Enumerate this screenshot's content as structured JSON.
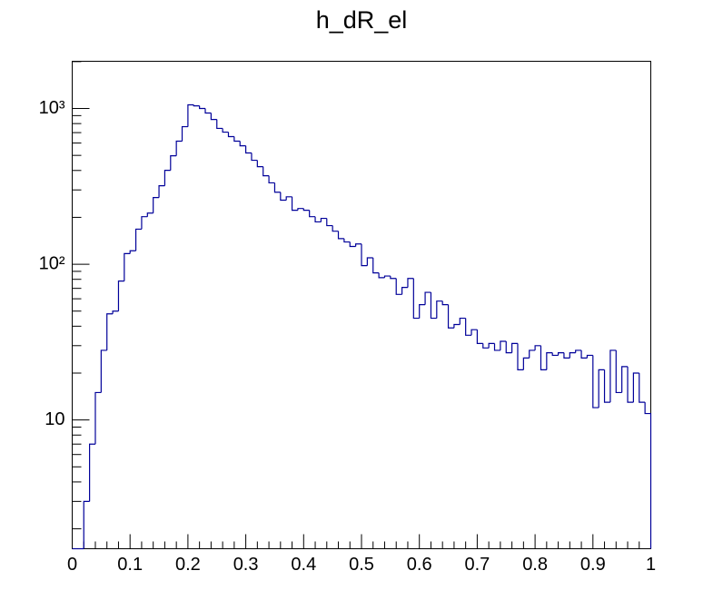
{
  "chart_data": {
    "type": "histogram",
    "title": "h_dR_el",
    "bins": [
      0,
      0.01,
      0.02,
      0.03,
      0.04,
      0.05,
      0.06,
      0.07,
      0.08,
      0.09,
      0.1,
      0.11,
      0.12,
      0.13,
      0.14,
      0.15,
      0.16,
      0.17,
      0.18,
      0.19,
      0.2,
      0.21,
      0.22,
      0.23,
      0.24,
      0.25,
      0.26,
      0.27,
      0.28,
      0.29,
      0.3,
      0.31,
      0.32,
      0.33,
      0.34,
      0.35,
      0.36,
      0.37,
      0.38,
      0.39,
      0.4,
      0.41,
      0.42,
      0.43,
      0.44,
      0.45,
      0.46,
      0.47,
      0.48,
      0.49,
      0.5,
      0.51,
      0.52,
      0.53,
      0.54,
      0.55,
      0.56,
      0.57,
      0.58,
      0.59,
      0.6,
      0.61,
      0.62,
      0.63,
      0.64,
      0.65,
      0.66,
      0.67,
      0.68,
      0.69,
      0.7,
      0.71,
      0.72,
      0.73,
      0.74,
      0.75,
      0.76,
      0.77,
      0.78,
      0.79,
      0.8,
      0.81,
      0.82,
      0.83,
      0.84,
      0.85,
      0.86,
      0.87,
      0.88,
      0.89,
      0.9,
      0.91,
      0.92,
      0.93,
      0.94,
      0.95,
      0.96,
      0.97,
      0.98,
      0.99,
      1
    ],
    "values": [
      0,
      0,
      3,
      7,
      15,
      28,
      48,
      50,
      78,
      117,
      122,
      168,
      202,
      213,
      268,
      319,
      401,
      497,
      617,
      764,
      1055,
      1040,
      1000,
      935,
      850,
      745,
      705,
      660,
      617,
      576,
      518,
      465,
      423,
      370,
      333,
      290,
      258,
      271,
      222,
      228,
      222,
      202,
      187,
      197,
      177,
      163,
      146,
      139,
      130,
      135,
      98,
      110,
      88,
      82,
      84,
      81,
      64,
      71,
      81,
      45,
      55,
      66,
      45,
      58,
      55,
      39,
      41,
      45,
      35,
      38,
      31,
      29,
      31,
      28,
      32,
      27,
      31,
      21,
      25,
      28,
      30,
      21,
      27,
      26,
      27,
      25,
      27,
      28,
      25,
      26,
      12,
      21,
      13,
      28,
      15,
      22,
      13,
      20,
      13,
      11
    ],
    "color": "#000099",
    "log_y": true,
    "xlim": [
      0,
      1
    ],
    "xticks": [
      0,
      0.1,
      0.2,
      0.3,
      0.4,
      0.5,
      0.6,
      0.7,
      0.8,
      0.9,
      1
    ],
    "ylim": [
      1.49,
      2010
    ],
    "yticks": [
      10,
      {
        "value": 100,
        "label": "10²"
      },
      {
        "value": 1000,
        "label": "10³"
      }
    ]
  }
}
